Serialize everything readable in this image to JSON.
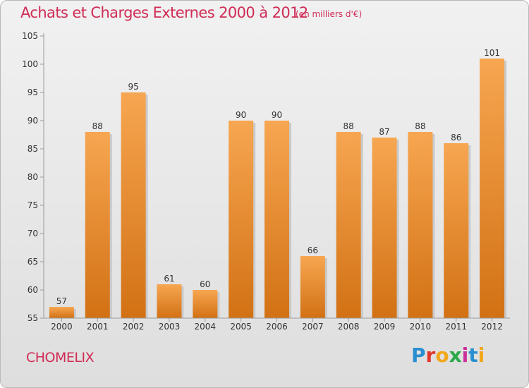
{
  "title": "Achats et Charges Externes 2000 à 2012",
  "subtitle": "(en milliers d'€)",
  "commune": "CHOMELIX",
  "logo": {
    "letters": [
      "P",
      "r",
      "o",
      "x",
      "i",
      "t",
      "i"
    ],
    "colors": [
      "#2a8fd0",
      "#e0372a",
      "#f2a71b",
      "#2aa84a",
      "#c8309b",
      "#2a8fd0",
      "#f2a71b"
    ]
  },
  "colors": {
    "title": "#d02c56",
    "bar_light": "#f7a651",
    "bar_dark": "#d27114"
  },
  "chart_data": {
    "type": "bar",
    "categories": [
      "2000",
      "2001",
      "2002",
      "2003",
      "2004",
      "2005",
      "2006",
      "2007",
      "2008",
      "2009",
      "2010",
      "2011",
      "2012"
    ],
    "values": [
      57,
      88,
      95,
      61,
      60,
      90,
      90,
      66,
      88,
      87,
      88,
      86,
      101
    ],
    "ylim": [
      55,
      105
    ],
    "yticks": [
      55,
      60,
      65,
      70,
      75,
      80,
      85,
      90,
      95,
      100,
      105
    ],
    "grid": false
  }
}
